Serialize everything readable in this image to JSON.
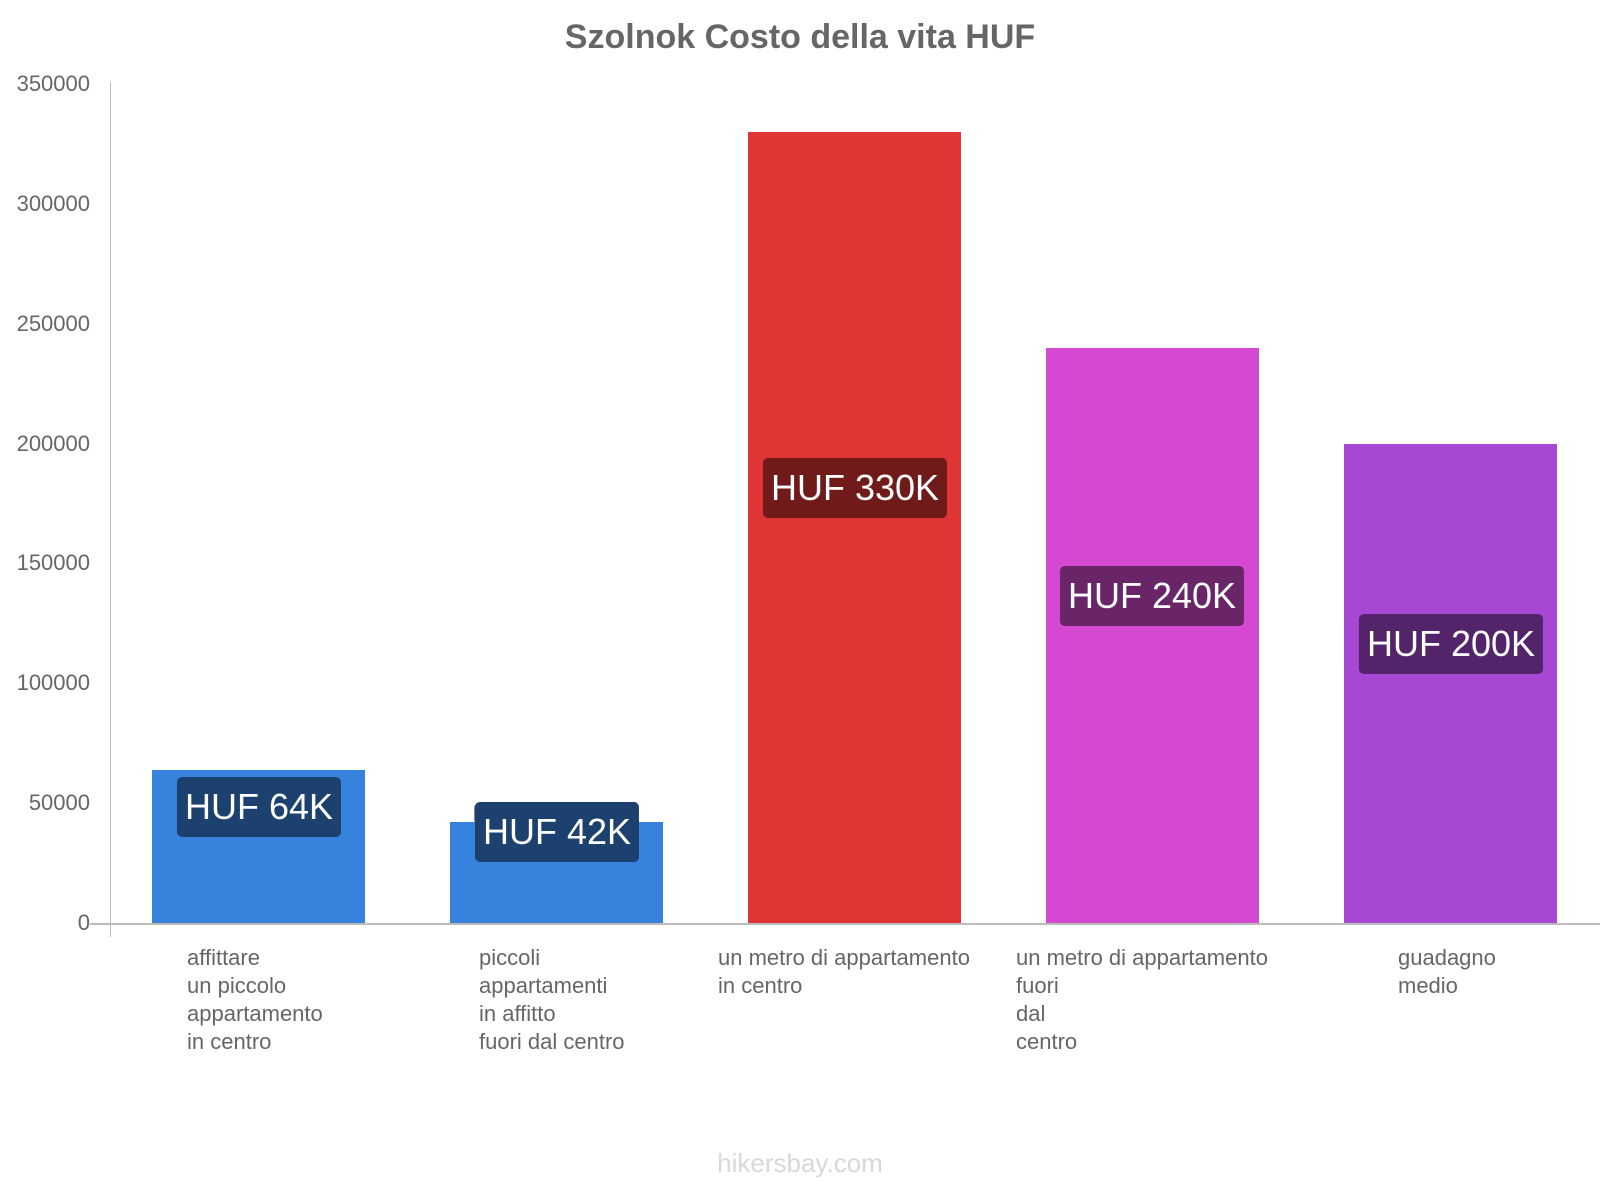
{
  "chart_data": {
    "type": "bar",
    "title": "Szolnok Costo della vita HUF",
    "xlabel": "",
    "ylabel": "",
    "ylim": [
      0,
      350000
    ],
    "yticks": [
      0,
      50000,
      100000,
      150000,
      200000,
      250000,
      300000,
      350000
    ],
    "ytick_labels": [
      "0",
      "50000",
      "100000",
      "150000",
      "200000",
      "250000",
      "300000",
      "350000"
    ],
    "grid": false,
    "legend": null,
    "categories": [
      "affittare\nun piccolo\nappartamento\nin centro",
      "piccoli\nappartamenti\nin affitto\nfuori dal centro",
      "un metro di appartamento\nin centro",
      "un metro di appartamento\nfuori\ndal\ncentro",
      "guadagno\nmedio"
    ],
    "values": [
      64000,
      42000,
      330000,
      240000,
      200000
    ],
    "data_labels": [
      "HUF 64K",
      "HUF 42K",
      "HUF 330K",
      "HUF 240K",
      "HUF 200K"
    ],
    "colors": [
      "#3682dc",
      "#3682dc",
      "#e03535",
      "#d548d1",
      "#a748d5"
    ],
    "label_bg_colors": [
      "#1d416e",
      "#1d416e",
      "#701a1a",
      "#6a2468",
      "#53246a"
    ]
  },
  "footer": "hikersbay.com"
}
